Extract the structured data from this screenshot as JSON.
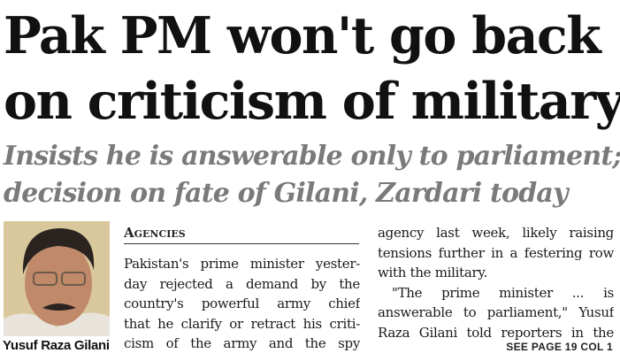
{
  "headline": {
    "line1": "Pak PM won't go back",
    "line2": "on criticism of military"
  },
  "subheadline": {
    "line1": "Insists he is answerable only to parliament;",
    "line2": "decision on fate of Gilani, Zardari today"
  },
  "photo": {
    "caption": "Yusuf Raza Gilani"
  },
  "byline": "Agencies",
  "column1": [
    "Pakistan's prime minister yester-",
    "day rejected a demand by the",
    "country's powerful army chief",
    "that he clarify or retract his criti-",
    "cism of the army and the spy"
  ],
  "column2": [
    "agency last week, likely raising",
    "tensions further in a festering row",
    "with the military.",
    "\"The prime minister ... is",
    "answerable to parliament,\" Yusuf",
    "Raza Gilani told reporters in the"
  ],
  "jump": "SEE PAGE 19 COL 1"
}
